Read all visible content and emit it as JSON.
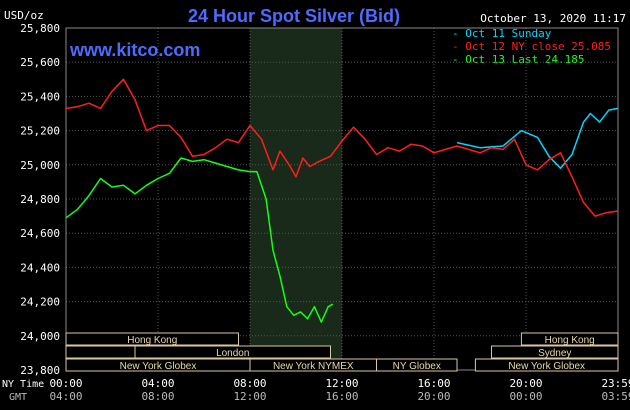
{
  "chart_data": {
    "type": "line",
    "title": "24 Hour Spot Silver (Bid)",
    "watermark": "www.kitco.com",
    "ylabel": "USD/oz",
    "ylim": [
      23800,
      25800
    ],
    "yticks": [
      "25,800",
      "25,600",
      "25,400",
      "25,200",
      "25,000",
      "24,800",
      "24,600",
      "24,400",
      "24,200",
      "24,000",
      "23,800"
    ],
    "ytick_values": [
      25800,
      25600,
      25400,
      25200,
      25000,
      24800,
      24600,
      24400,
      24200,
      24000,
      23800
    ],
    "x_range_hours": [
      0,
      24
    ],
    "xticks_ny": [
      "00:00",
      "04:00",
      "08:00",
      "12:00",
      "16:00",
      "20:00",
      "23:59"
    ],
    "xticks_gmt": [
      "04:00",
      "08:00",
      "12:00",
      "16:00",
      "20:00",
      "00:00",
      "03:59"
    ],
    "xtick_hours": [
      0,
      4,
      8,
      12,
      16,
      20,
      24
    ],
    "x_axis_labels": {
      "ny": "NY Time",
      "gmt": "GMT"
    },
    "date_label": "October 13, 2020 11:17",
    "grid": true,
    "legend_position": "top-right",
    "colors": {
      "background": "#000000",
      "grid": "#555555",
      "title": "#4f6bff",
      "axis_text": "#ffffff",
      "cyan": "#00d7ff",
      "red": "#ff1e1e",
      "green": "#14ff14",
      "highlight": "#1a2a1a"
    },
    "highlight_hours": [
      8,
      12
    ],
    "series": [
      {
        "name": "Oct 11 Sunday",
        "color": "#00d7ff",
        "x": [
          17.0,
          18.0,
          19.0,
          19.8,
          20.5,
          21.0,
          21.5,
          22.0,
          22.5,
          22.8,
          23.2,
          23.6,
          23.99
        ],
        "y": [
          25130,
          25100,
          25110,
          25200,
          25160,
          25050,
          24980,
          25060,
          25250,
          25300,
          25250,
          25320,
          25330
        ]
      },
      {
        "name": "Oct 12 NY close 25.085",
        "color": "#ff1e1e",
        "x": [
          0,
          0.5,
          1.0,
          1.5,
          2.0,
          2.5,
          3.0,
          3.5,
          4.0,
          4.5,
          5.0,
          5.5,
          6.0,
          6.5,
          7.0,
          7.5,
          8.0,
          8.5,
          9.0,
          9.3,
          9.7,
          10.0,
          10.3,
          10.6,
          11.0,
          11.5,
          12.0,
          12.5,
          13.0,
          13.5,
          14.0,
          14.5,
          15.0,
          15.5,
          16.0,
          16.5,
          17.0,
          17.5,
          18.0,
          18.5,
          19.0,
          19.5,
          20.0,
          20.5,
          21.0,
          21.5,
          22.0,
          22.5,
          23.0,
          23.5,
          23.99
        ],
        "y": [
          25330,
          25340,
          25360,
          25330,
          25430,
          25500,
          25380,
          25200,
          25230,
          25230,
          25160,
          25050,
          25060,
          25100,
          25150,
          25130,
          25230,
          25150,
          24970,
          25080,
          25000,
          24930,
          25040,
          24990,
          25020,
          25050,
          25140,
          25220,
          25150,
          25060,
          25100,
          25080,
          25120,
          25110,
          25070,
          25090,
          25110,
          25090,
          25070,
          25100,
          25090,
          25150,
          25000,
          24970,
          25030,
          25070,
          24930,
          24780,
          24700,
          24720,
          24730
        ]
      },
      {
        "name": "Oct 13 Last 24.185",
        "color": "#14ff14",
        "x": [
          0,
          0.5,
          1.0,
          1.5,
          2.0,
          2.5,
          3.0,
          3.5,
          4.0,
          4.5,
          5.0,
          5.5,
          6.0,
          6.5,
          7.0,
          7.5,
          8.0,
          8.3,
          8.7,
          9.0,
          9.3,
          9.6,
          9.9,
          10.2,
          10.5,
          10.8,
          11.1,
          11.4,
          11.6
        ],
        "y": [
          24690,
          24740,
          24820,
          24920,
          24870,
          24880,
          24830,
          24880,
          24920,
          24950,
          25040,
          25020,
          25030,
          25010,
          24990,
          24970,
          24960,
          24960,
          24800,
          24500,
          24350,
          24170,
          24120,
          24140,
          24100,
          24170,
          24080,
          24170,
          24185
        ]
      }
    ],
    "sessions": [
      {
        "row": 0,
        "label": "Hong Kong",
        "start": 0.0,
        "end": 7.5
      },
      {
        "row": 0,
        "label": "Hong Kong",
        "start": 19.8,
        "end": 24.0
      },
      {
        "row": 1,
        "label": "London",
        "start": 3.0,
        "end": 11.5
      },
      {
        "row": 1,
        "label": "",
        "start": 0.0,
        "end": 3.0
      },
      {
        "row": 1,
        "label": "Sydney",
        "start": 18.5,
        "end": 24.0
      },
      {
        "row": 2,
        "label": "New York Globex",
        "start": 0.0,
        "end": 8.0
      },
      {
        "row": 2,
        "label": "New York NYMEX",
        "start": 8.0,
        "end": 13.5
      },
      {
        "row": 2,
        "label": "NY Globex",
        "start": 13.5,
        "end": 17.0
      },
      {
        "row": 2,
        "label": "New York Globex",
        "start": 17.8,
        "end": 24.0
      }
    ]
  }
}
